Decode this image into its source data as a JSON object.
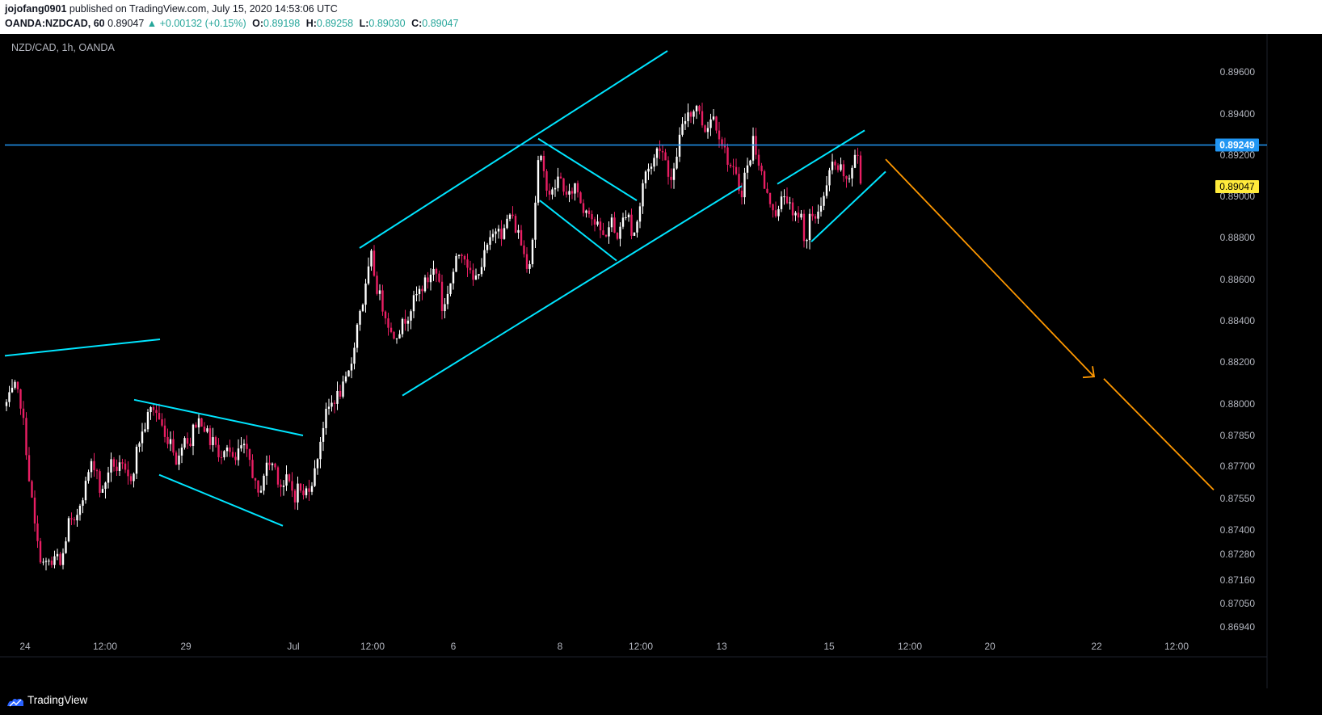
{
  "header": {
    "author": "jojofang0901",
    "published_text": "published on TradingView.com, July 15, 2020 14:53:06 UTC",
    "symbol": "OANDA:NZDCAD, 60",
    "last": "0.89047",
    "change": "▲ +0.00132 (+0.15%)",
    "open_label": "O:",
    "open": "0.89198",
    "high_label": "H:",
    "high": "0.89258",
    "low_label": "L:",
    "low": "0.89030",
    "close_label": "C:",
    "close": "0.89047"
  },
  "symbol_label": "NZD/CAD, 1h, OANDA",
  "footer": {
    "brand": "TradingView"
  },
  "colors": {
    "background": "#000000",
    "candle_up": "#ffffff",
    "candle_down": "#e91e63",
    "trendline": "#00e5ff",
    "level_line": "#2196f3",
    "projection": "#ff9800",
    "price_badge_level": "#2196f3",
    "price_badge_last": "#ffeb3b"
  },
  "chart_data": {
    "type": "candlestick",
    "title": "NZD/CAD, 1h, OANDA",
    "y_ticks": [
      "0.89600",
      "0.89400",
      "0.89200",
      "0.89000",
      "0.88800",
      "0.88600",
      "0.88400",
      "0.88200",
      "0.88000",
      "0.87850",
      "0.87700",
      "0.87550",
      "0.87400",
      "0.87280",
      "0.87160",
      "0.87050",
      "0.86940"
    ],
    "x_ticks": [
      "24",
      "12:00",
      "29",
      "Jul",
      "12:00",
      "6",
      "8",
      "12:00",
      "13",
      "15",
      "12:00",
      "20",
      "22",
      "12:00"
    ],
    "level_line": {
      "value": 0.89249,
      "label": "0.89249"
    },
    "last_price": {
      "value": 0.89047,
      "label": "0.89047"
    },
    "close_path": [
      [
        0,
        0.8797
      ],
      [
        6,
        0.8799
      ],
      [
        12,
        0.8803
      ],
      [
        18,
        0.8808
      ],
      [
        22,
        0.8804
      ],
      [
        25,
        0.8802
      ],
      [
        30,
        0.8788
      ],
      [
        35,
        0.8768
      ],
      [
        40,
        0.8752
      ],
      [
        45,
        0.8735
      ],
      [
        50,
        0.8727
      ],
      [
        55,
        0.8722
      ],
      [
        60,
        0.8725
      ],
      [
        65,
        0.8722
      ],
      [
        70,
        0.8728
      ],
      [
        75,
        0.8722
      ],
      [
        80,
        0.8732
      ],
      [
        85,
        0.8744
      ],
      [
        92,
        0.8742
      ],
      [
        98,
        0.8752
      ],
      [
        105,
        0.876
      ],
      [
        110,
        0.8768
      ],
      [
        115,
        0.8772
      ],
      [
        120,
        0.8768
      ],
      [
        125,
        0.8755
      ],
      [
        130,
        0.8762
      ],
      [
        135,
        0.877
      ],
      [
        140,
        0.8772
      ],
      [
        145,
        0.8768
      ],
      [
        150,
        0.877
      ],
      [
        155,
        0.8766
      ],
      [
        160,
        0.8763
      ],
      [
        165,
        0.8768
      ],
      [
        170,
        0.878
      ],
      [
        175,
        0.8785
      ],
      [
        180,
        0.879
      ],
      [
        185,
        0.8797
      ],
      [
        190,
        0.8798
      ],
      [
        195,
        0.8795
      ],
      [
        200,
        0.879
      ],
      [
        205,
        0.8782
      ],
      [
        210,
        0.8785
      ],
      [
        215,
        0.8778
      ],
      [
        220,
        0.877
      ],
      [
        225,
        0.8782
      ],
      [
        230,
        0.8785
      ],
      [
        235,
        0.878
      ],
      [
        240,
        0.879
      ],
      [
        245,
        0.8792
      ],
      [
        250,
        0.8792
      ],
      [
        255,
        0.8787
      ],
      [
        260,
        0.8782
      ],
      [
        265,
        0.8785
      ],
      [
        270,
        0.8772
      ],
      [
        275,
        0.8778
      ],
      [
        280,
        0.8782
      ],
      [
        285,
        0.8776
      ],
      [
        290,
        0.877
      ],
      [
        295,
        0.8777
      ],
      [
        300,
        0.878
      ],
      [
        305,
        0.8776
      ],
      [
        310,
        0.8772
      ],
      [
        315,
        0.8762
      ],
      [
        320,
        0.8755
      ],
      [
        325,
        0.8765
      ],
      [
        330,
        0.877
      ],
      [
        335,
        0.8772
      ],
      [
        340,
        0.877
      ],
      [
        345,
        0.8763
      ],
      [
        350,
        0.876
      ],
      [
        355,
        0.8764
      ],
      [
        360,
        0.876
      ],
      [
        365,
        0.8756
      ],
      [
        370,
        0.8762
      ],
      [
        375,
        0.8755
      ],
      [
        380,
        0.876
      ],
      [
        385,
        0.8762
      ],
      [
        390,
        0.8768
      ],
      [
        395,
        0.878
      ],
      [
        400,
        0.879
      ],
      [
        405,
        0.8797
      ],
      [
        410,
        0.88
      ],
      [
        415,
        0.8803
      ],
      [
        420,
        0.8805
      ],
      [
        425,
        0.8808
      ],
      [
        430,
        0.8812
      ],
      [
        435,
        0.882
      ],
      [
        440,
        0.8833
      ],
      [
        445,
        0.8845
      ],
      [
        450,
        0.885
      ],
      [
        455,
        0.8862
      ],
      [
        460,
        0.8872
      ],
      [
        465,
        0.8857
      ],
      [
        470,
        0.8852
      ],
      [
        475,
        0.8845
      ],
      [
        480,
        0.884
      ],
      [
        485,
        0.8832
      ],
      [
        490,
        0.8834
      ],
      [
        495,
        0.8836
      ],
      [
        500,
        0.884
      ],
      [
        505,
        0.8843
      ],
      [
        510,
        0.8848
      ],
      [
        515,
        0.8852
      ],
      [
        520,
        0.8855
      ],
      [
        525,
        0.8858
      ],
      [
        530,
        0.886
      ],
      [
        535,
        0.8865
      ],
      [
        540,
        0.8863
      ],
      [
        545,
        0.8858
      ],
      [
        548,
        0.884
      ],
      [
        552,
        0.8852
      ],
      [
        557,
        0.8858
      ],
      [
        562,
        0.8865
      ],
      [
        567,
        0.8872
      ],
      [
        572,
        0.8874
      ],
      [
        577,
        0.887
      ],
      [
        582,
        0.8862
      ],
      [
        587,
        0.8858
      ],
      [
        592,
        0.8865
      ],
      [
        597,
        0.8868
      ],
      [
        602,
        0.8875
      ],
      [
        607,
        0.8878
      ],
      [
        612,
        0.8883
      ],
      [
        617,
        0.8887
      ],
      [
        622,
        0.888
      ],
      [
        627,
        0.8888
      ],
      [
        632,
        0.8892
      ],
      [
        637,
        0.8885
      ],
      [
        642,
        0.8882
      ],
      [
        647,
        0.8874
      ],
      [
        652,
        0.8868
      ],
      [
        657,
        0.887
      ],
      [
        662,
        0.8895
      ],
      [
        667,
        0.8922
      ],
      [
        672,
        0.8912
      ],
      [
        677,
        0.8905
      ],
      [
        682,
        0.89
      ],
      [
        687,
        0.8905
      ],
      [
        692,
        0.891
      ],
      [
        697,
        0.8905
      ],
      [
        702,
        0.8898
      ],
      [
        707,
        0.8902
      ],
      [
        712,
        0.8906
      ],
      [
        717,
        0.89
      ],
      [
        722,
        0.8893
      ],
      [
        727,
        0.8896
      ],
      [
        732,
        0.889
      ],
      [
        737,
        0.8886
      ],
      [
        742,
        0.8884
      ],
      [
        747,
        0.888
      ],
      [
        752,
        0.8884
      ],
      [
        757,
        0.8888
      ],
      [
        762,
        0.888
      ],
      [
        767,
        0.8883
      ],
      [
        772,
        0.889
      ],
      [
        777,
        0.8895
      ],
      [
        782,
        0.888
      ],
      [
        787,
        0.8885
      ],
      [
        792,
        0.8895
      ],
      [
        797,
        0.891
      ],
      [
        802,
        0.8915
      ],
      [
        807,
        0.8914
      ],
      [
        812,
        0.8922
      ],
      [
        817,
        0.8925
      ],
      [
        822,
        0.892
      ],
      [
        827,
        0.8912
      ],
      [
        832,
        0.8905
      ],
      [
        837,
        0.892
      ],
      [
        842,
        0.893
      ],
      [
        847,
        0.8936
      ],
      [
        852,
        0.8942
      ],
      [
        857,
        0.894
      ],
      [
        862,
        0.8945
      ],
      [
        867,
        0.8938
      ],
      [
        872,
        0.8932
      ],
      [
        877,
        0.8936
      ],
      [
        882,
        0.894
      ],
      [
        887,
        0.8934
      ],
      [
        892,
        0.8928
      ],
      [
        897,
        0.8922
      ],
      [
        902,
        0.8916
      ],
      [
        907,
        0.8912
      ],
      [
        912,
        0.8908
      ],
      [
        917,
        0.89
      ],
      [
        922,
        0.8912
      ],
      [
        927,
        0.8915
      ],
      [
        932,
        0.8928
      ],
      [
        937,
        0.892
      ],
      [
        942,
        0.8912
      ],
      [
        947,
        0.8902
      ],
      [
        952,
        0.8898
      ],
      [
        957,
        0.8895
      ],
      [
        962,
        0.889
      ],
      [
        967,
        0.8898
      ],
      [
        972,
        0.8902
      ],
      [
        977,
        0.8895
      ],
      [
        982,
        0.8888
      ],
      [
        987,
        0.8892
      ],
      [
        992,
        0.889
      ],
      [
        997,
        0.8875
      ],
      [
        1002,
        0.889
      ],
      [
        1007,
        0.8887
      ],
      [
        1012,
        0.8893
      ],
      [
        1017,
        0.8898
      ],
      [
        1022,
        0.8902
      ],
      [
        1027,
        0.8912
      ],
      [
        1032,
        0.8918
      ],
      [
        1037,
        0.891
      ],
      [
        1042,
        0.8915
      ],
      [
        1047,
        0.8905
      ],
      [
        1052,
        0.891
      ],
      [
        1057,
        0.892
      ],
      [
        1061,
        0.8922
      ],
      [
        1065,
        0.8905
      ]
    ],
    "trendlines": [
      [
        [
          6,
          0.8823
        ],
        [
          198,
          0.8831
        ]
      ],
      [
        [
          166,
          0.8802
        ],
        [
          375,
          0.8785
        ]
      ],
      [
        [
          197,
          0.8766
        ],
        [
          350,
          0.8742
        ]
      ],
      [
        [
          445,
          0.8875
        ],
        [
          826,
          0.897
        ]
      ],
      [
        [
          498,
          0.8804
        ],
        [
          918,
          0.8905
        ]
      ],
      [
        [
          666,
          0.8928
        ],
        [
          788,
          0.8898
        ]
      ],
      [
        [
          668,
          0.8898
        ],
        [
          763,
          0.8869
        ]
      ],
      [
        [
          962,
          0.8906
        ],
        [
          1070,
          0.8932
        ]
      ],
      [
        [
          1004,
          0.8878
        ],
        [
          1096,
          0.8912
        ]
      ]
    ],
    "projection": [
      [
        [
          1096,
          0.8918
        ],
        [
          1354,
          0.8813
        ]
      ],
      [
        [
          1366,
          0.8812
        ],
        [
          1502,
          0.8759
        ]
      ]
    ]
  }
}
